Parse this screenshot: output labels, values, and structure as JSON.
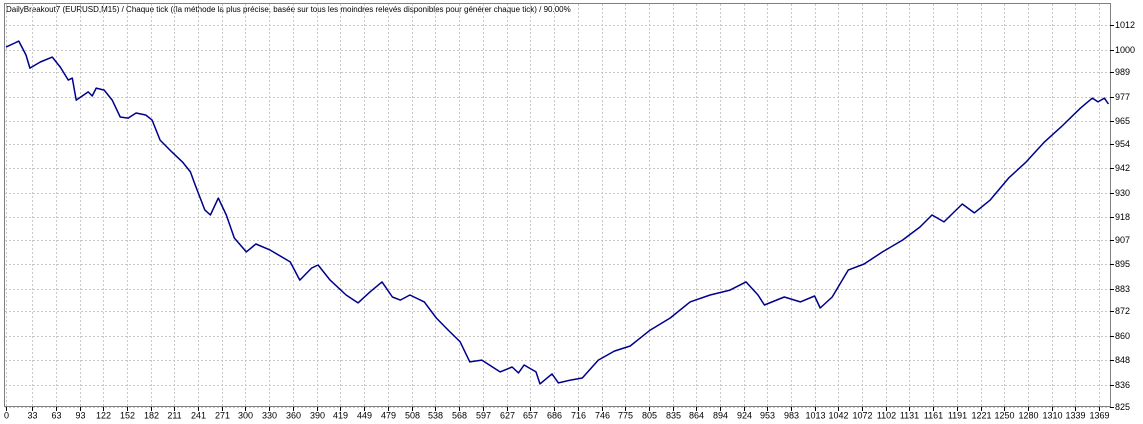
{
  "chart_data": {
    "type": "line",
    "title": "DailyBreakout7 (EURUSD,M15) / Chaque tick ((la méthode la plus précise, basée sur tous les moindres relevés disponibles pour générer chaque tick) / 90.00%",
    "x": [
      0,
      11,
      16,
      25,
      30,
      43,
      58,
      68,
      78,
      83,
      88,
      103,
      108,
      113,
      123,
      133,
      143,
      153,
      163,
      175,
      183,
      193,
      208,
      221,
      231,
      237,
      249,
      256,
      266,
      276,
      286,
      301,
      313,
      331,
      356,
      368,
      383,
      391,
      406,
      426,
      441,
      456,
      471,
      484,
      494,
      506,
      524,
      539,
      554,
      569,
      581,
      596,
      619,
      634,
      642,
      649,
      664,
      669,
      684,
      692,
      707,
      722,
      742,
      762,
      782,
      807,
      832,
      857,
      882,
      907,
      927,
      942,
      950,
      975,
      995,
      1013,
      1020,
      1035,
      1055,
      1075,
      1098,
      1123,
      1145,
      1160,
      1175,
      1198,
      1213,
      1233,
      1256,
      1278,
      1301,
      1323,
      1346,
      1361,
      1368,
      1376,
      1381
    ],
    "series": [
      {
        "color": "#00008b",
        "values": [
          1001.4,
          1003.4,
          1004.3,
          997.5,
          991.1,
          994.1,
          996.5,
          991.6,
          985.2,
          986.2,
          975.4,
          979.4,
          977.4,
          981.3,
          980.3,
          975.4,
          967.1,
          966.6,
          969.1,
          968.1,
          965.6,
          955.8,
          949.9,
          945.1,
          940.2,
          933.8,
          921.6,
          919.1,
          927.4,
          919.1,
          907.8,
          901.0,
          904.9,
          901.9,
          896.1,
          887.2,
          893.1,
          894.6,
          887.2,
          879.9,
          876.0,
          881.4,
          886.3,
          878.9,
          877.4,
          879.9,
          876.5,
          868.6,
          862.7,
          856.9,
          847.1,
          848.0,
          842.2,
          844.6,
          841.7,
          845.6,
          842.2,
          836.3,
          841.2,
          836.8,
          838.2,
          839.2,
          848.0,
          852.4,
          854.9,
          862.7,
          868.6,
          876.5,
          879.9,
          882.3,
          886.3,
          879.9,
          875.0,
          878.9,
          876.5,
          879.4,
          873.5,
          878.9,
          892.1,
          895.1,
          901.0,
          906.8,
          913.2,
          919.1,
          915.7,
          924.5,
          920.1,
          926.5,
          937.2,
          945.1,
          954.9,
          962.7,
          971.5,
          976.4,
          974.5,
          976.4,
          973.5
        ]
      }
    ],
    "xlim": [
      0,
      1383
    ],
    "xticks": [
      0,
      33,
      63,
      93,
      122,
      152,
      182,
      211,
      241,
      271,
      300,
      330,
      360,
      390,
      419,
      449,
      479,
      508,
      538,
      568,
      597,
      627,
      657,
      686,
      716,
      746,
      775,
      805,
      835,
      864,
      894,
      924,
      953,
      983,
      1013,
      1042,
      1072,
      1102,
      1131,
      1161,
      1191,
      1221,
      1250,
      1280,
      1310,
      1339,
      1369
    ],
    "ylim": [
      825,
      1022.5
    ],
    "yticks": [
      1012,
      1000,
      989,
      977,
      965,
      954,
      942,
      930,
      918,
      907,
      895,
      883,
      872,
      860,
      848,
      836,
      825
    ],
    "grid": true
  }
}
